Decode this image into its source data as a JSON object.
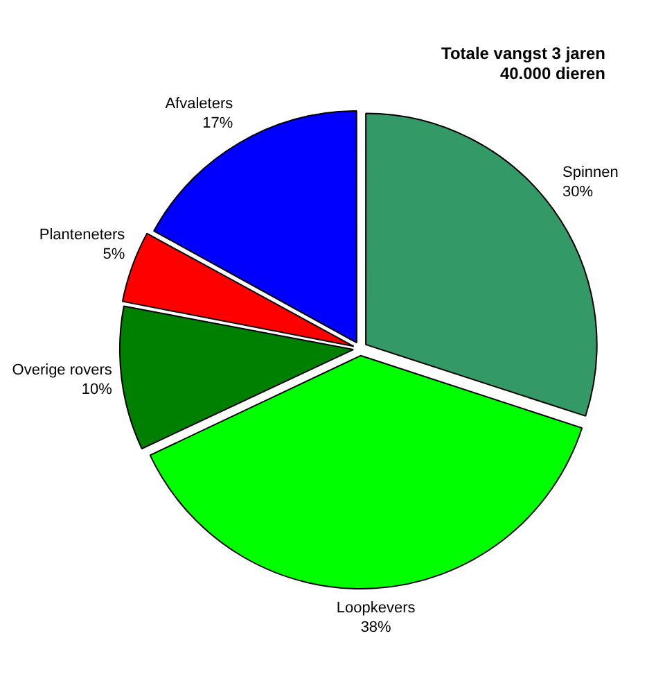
{
  "chart_data": {
    "type": "pie",
    "title": "Totale vangst 3 jaren\n40.000 dieren",
    "categories": [
      "Spinnen",
      "Loopkevers",
      "Overige rovers",
      "Planteneters",
      "Afvaleters"
    ],
    "values": [
      30,
      38,
      10,
      5,
      17
    ],
    "value_labels": [
      "30%",
      "38%",
      "10%",
      "5%",
      "17%"
    ],
    "colors": [
      "#339966",
      "#00ff00",
      "#008000",
      "#ff0000",
      "#0000ff"
    ],
    "legend": false
  }
}
